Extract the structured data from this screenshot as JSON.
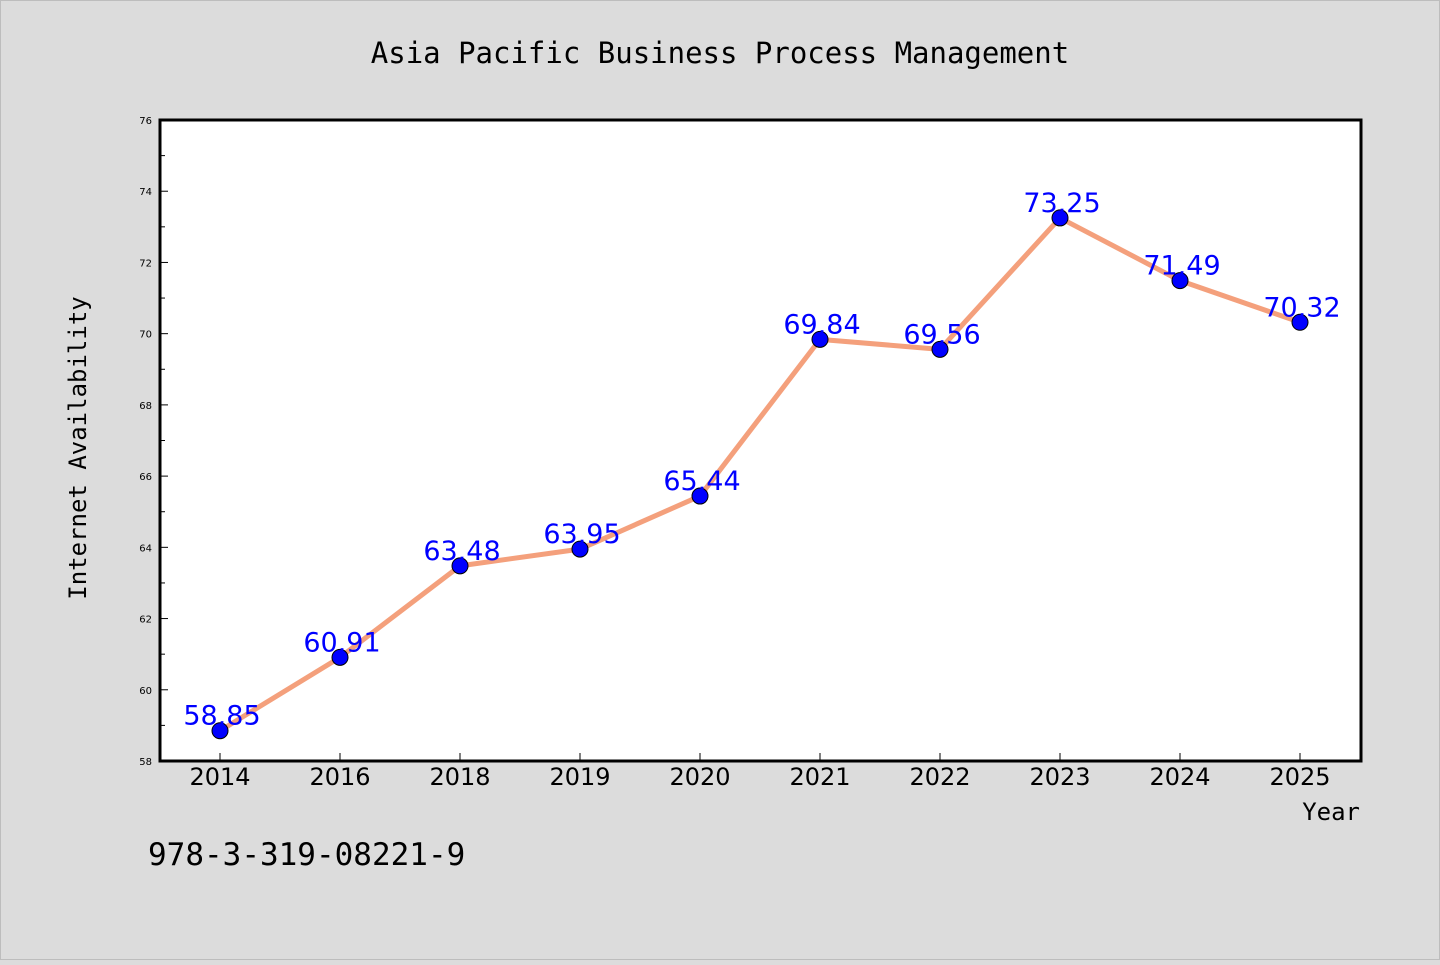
{
  "chart_data": {
    "type": "line",
    "title": "Asia Pacific Business Process Management",
    "xlabel": "Year",
    "ylabel": "Internet Availability",
    "categories": [
      "2014",
      "2016",
      "2018",
      "2019",
      "2020",
      "2021",
      "2022",
      "2023",
      "2024",
      "2025"
    ],
    "values": [
      58.85,
      60.91,
      63.48,
      63.95,
      65.44,
      69.84,
      69.56,
      73.25,
      71.49,
      70.32
    ],
    "data_labels": [
      "58.85",
      "60.91",
      "63.48",
      "63.95",
      "65.44",
      "69.84",
      "69.56",
      "73.25",
      "71.49",
      "70.32"
    ],
    "ylim": [
      58,
      76
    ],
    "yticks": [
      "58",
      "60",
      "62",
      "64",
      "66",
      "68",
      "70",
      "72",
      "74",
      "76"
    ],
    "grid": false,
    "line_color": "#f4a07c",
    "marker_color": "#0000ff",
    "label_color": "#0000ff"
  },
  "figure": {
    "background": "#dcdcdc",
    "plot_background": "#ffffff",
    "footer_text": "978-3-319-08221-9"
  }
}
